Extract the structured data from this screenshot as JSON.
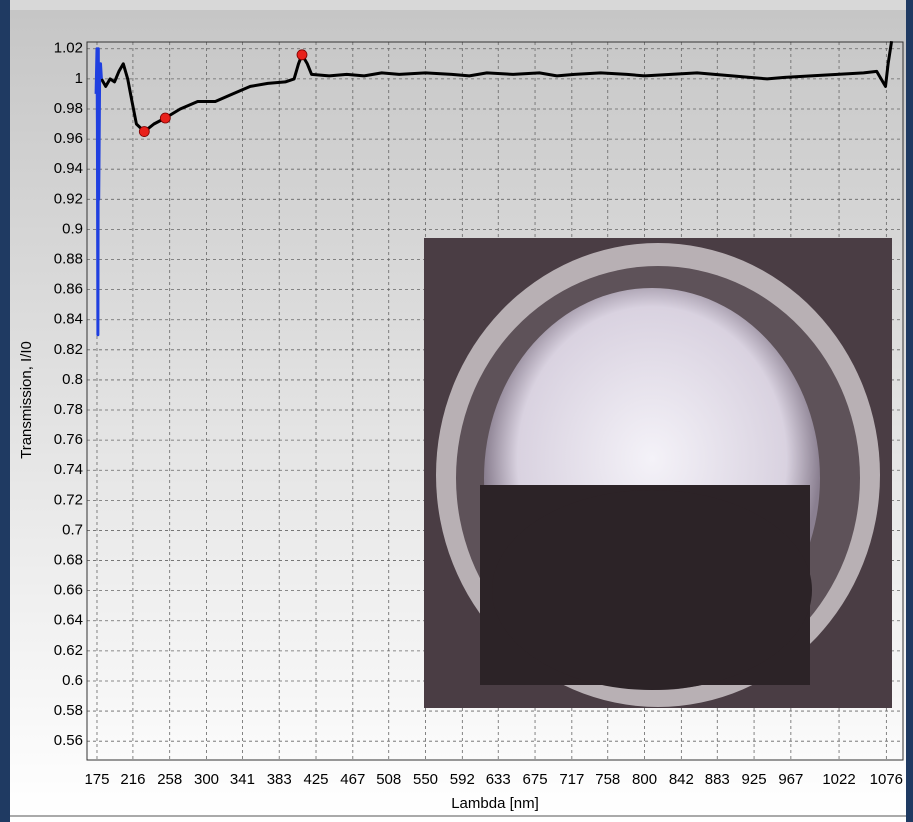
{
  "chart_data": {
    "type": "line",
    "x_label": "Lambda [nm]",
    "y_label": "Transmission, I/I0",
    "xlim": [
      163.6,
      1095
    ],
    "ylim": [
      0.5475,
      1.0245
    ],
    "xticks": [
      175,
      216,
      258,
      300,
      341,
      383,
      425,
      467,
      508,
      550,
      592,
      633,
      675,
      717,
      758,
      800,
      842,
      883,
      925,
      967,
      1022,
      1076
    ],
    "yticks": [
      0.56,
      0.58,
      0.6,
      0.62,
      0.64,
      0.66,
      0.68,
      0.7,
      0.72,
      0.74,
      0.76,
      0.78,
      0.8,
      0.82,
      0.84,
      0.86,
      0.88,
      0.9,
      0.92,
      0.94,
      0.96,
      0.98,
      1,
      1.02
    ],
    "grid": true,
    "series": [
      {
        "color": "#000000",
        "mode": "line",
        "x": [
          180,
          185,
          190,
          195,
          200,
          205,
          210,
          215,
          220,
          229,
          240,
          253,
          270,
          290,
          310,
          330,
          350,
          370,
          390,
          400,
          405,
          409,
          415,
          420,
          440,
          460,
          480,
          500,
          520,
          550,
          580,
          600,
          620,
          650,
          680,
          700,
          720,
          750,
          780,
          800,
          830,
          860,
          880,
          900,
          920,
          940,
          960,
          990,
          1020,
          1050,
          1065,
          1070,
          1075,
          1078,
          1082
        ],
        "values": [
          1.0,
          0.995,
          1.0,
          0.998,
          1.005,
          1.01,
          1.0,
          0.985,
          0.97,
          0.965,
          0.97,
          0.974,
          0.98,
          0.985,
          0.985,
          0.99,
          0.995,
          0.997,
          0.998,
          1.0,
          1.01,
          1.016,
          1.01,
          1.003,
          1.002,
          1.003,
          1.002,
          1.004,
          1.003,
          1.004,
          1.003,
          1.002,
          1.004,
          1.003,
          1.004,
          1.002,
          1.003,
          1.004,
          1.003,
          1.002,
          1.003,
          1.004,
          1.003,
          1.002,
          1.001,
          1.0,
          1.001,
          1.002,
          1.003,
          1.004,
          1.005,
          1.0,
          0.995,
          1.01,
          1.025
        ]
      },
      {
        "color": "#1f3fe0",
        "mode": "line",
        "x": [
          174,
          175,
          175.5,
          176,
          176.5,
          177,
          178,
          179,
          180
        ],
        "values": [
          0.99,
          1.02,
          0.97,
          0.83,
          1.02,
          0.92,
          1.0,
          1.01,
          1.0
        ]
      },
      {
        "color": "#e8211b",
        "mode": "markers",
        "x": [
          229,
          253,
          409
        ],
        "values": [
          0.965,
          0.974,
          1.016
        ]
      }
    ]
  }
}
